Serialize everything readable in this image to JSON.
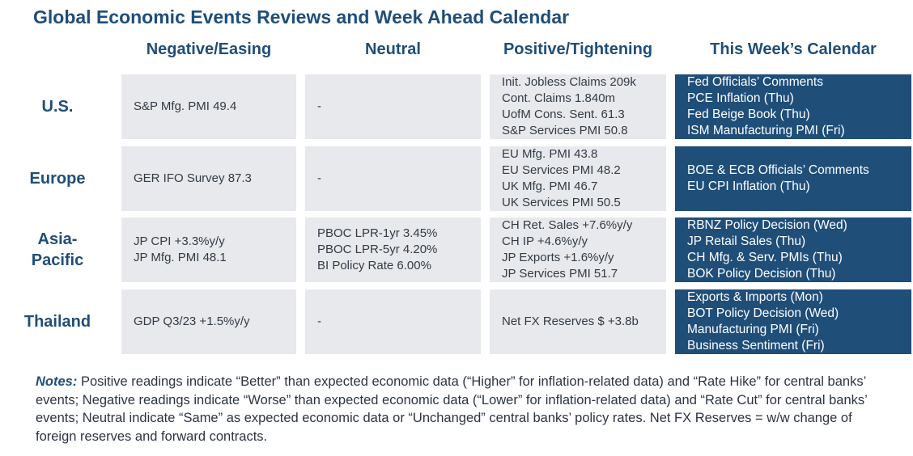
{
  "title": "Global Economic Events Reviews and Week Ahead Calendar",
  "columns": [
    "Negative/Easing",
    "Neutral",
    "Positive/Tightening",
    "This Week’s Calendar"
  ],
  "rows": [
    {
      "label": "U.S.",
      "negative": [
        "S&P Mfg. PMI 49.4"
      ],
      "neutral": [
        "-"
      ],
      "positive": [
        "Init. Jobless Claims 209k",
        "Cont. Claims 1.840m",
        "UofM Cons. Sent. 61.3",
        "S&P Services PMI 50.8"
      ],
      "calendar": [
        "Fed Officials’ Comments",
        "PCE Inflation (Thu)",
        "Fed Beige Book (Thu)",
        "ISM Manufacturing PMI (Fri)"
      ]
    },
    {
      "label": "Europe",
      "negative": [
        "GER IFO Survey 87.3"
      ],
      "neutral": [
        "-"
      ],
      "positive": [
        "EU Mfg. PMI 43.8",
        "EU Services PMI 48.2",
        "UK Mfg. PMI 46.7",
        "UK Services PMI 50.5"
      ],
      "calendar": [
        "BOE & ECB Officials’ Comments",
        "EU CPI Inflation (Thu)"
      ]
    },
    {
      "label": "Asia-Pacific",
      "label_lines": [
        "Asia-",
        "Pacific"
      ],
      "negative": [
        "JP CPI +3.3%y/y",
        "JP Mfg. PMI 48.1"
      ],
      "neutral": [
        "PBOC LPR-1yr 3.45%",
        "PBOC LPR-5yr 4.20%",
        "BI Policy Rate 6.00%"
      ],
      "positive": [
        "CH Ret. Sales +7.6%y/y",
        "CH IP +4.6%y/y",
        "JP Exports +1.6%y/y",
        "JP Services PMI 51.7"
      ],
      "calendar": [
        "RBNZ Policy Decision (Wed)",
        "JP Retail Sales (Thu)",
        "CH Mfg. & Serv. PMIs (Thu)",
        "BOK Policy Decision (Thu)"
      ]
    },
    {
      "label": "Thailand",
      "negative": [
        "GDP Q3/23 +1.5%y/y"
      ],
      "neutral": [
        "-"
      ],
      "positive": [
        "Net FX Reserves $ +3.8b"
      ],
      "calendar": [
        "Exports & Imports (Mon)",
        "BOT Policy Decision (Wed)",
        "Manufacturing PMI (Fri)",
        "Business Sentiment (Fri)"
      ]
    }
  ],
  "notes": {
    "label": "Notes:",
    "text": "Positive readings indicate “Better” than expected economic data (“Higher” for inflation-related data) and “Rate Hike” for central banks’ events; Negative readings indicate “Worse” than expected economic data (“Lower” for inflation-related data) and “Rate Cut” for central banks’ events; Neutral indicate “Same” as expected economic data or “Unchanged” central banks’ policy rates. Net FX Reserves = w/w change of foreign reserves and forward contracts."
  }
}
